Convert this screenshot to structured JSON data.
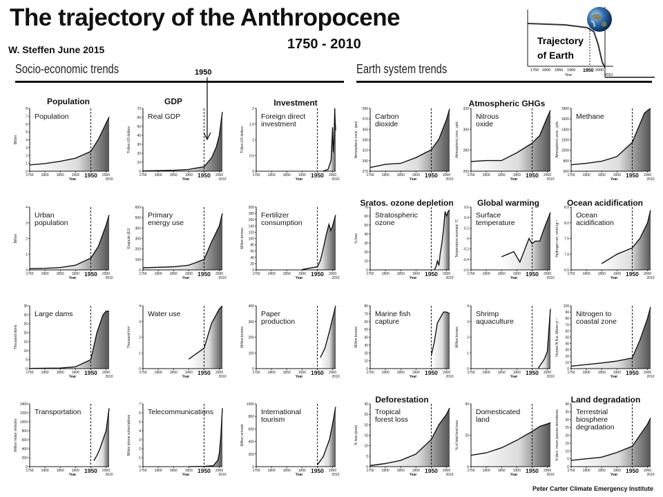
{
  "header": {
    "title": "The trajectory of the Anthropocene",
    "author": "W. Steffen June 2015",
    "period": "1750 - 2010",
    "socio_header": "Socio-economic trends",
    "earth_header": "Earth system trends",
    "marker_1950": "1950",
    "credit": "Peter Carter Climate Emergency Institute"
  },
  "earth_inset": {
    "label_line1": "Trajectory",
    "label_line2": "of Earth",
    "ticks": [
      "1750",
      "1800",
      "1850",
      "1900",
      "1950",
      "2000",
      "2010"
    ],
    "xlabel": "Year",
    "globe_icon": "globe-icon"
  },
  "category_labels": [
    {
      "text": "Population",
      "x": 99,
      "y": 140
    },
    {
      "text": "GDP",
      "x": 251,
      "y": 140
    },
    {
      "text": "Investment",
      "x": 428,
      "y": 142
    },
    {
      "text": "Atmospheric GHGs",
      "x": 734,
      "y": 143
    },
    {
      "text": "Sratos.  ozone depletion",
      "x": 589,
      "y": 287
    },
    {
      "text": "Global warming",
      "x": 736,
      "y": 287
    },
    {
      "text": "Ocean acidification",
      "x": 876,
      "y": 287
    },
    {
      "text": "Deforestation",
      "x": 582,
      "y": 572
    },
    {
      "text": "Land degradation",
      "x": 877,
      "y": 572
    }
  ],
  "chart_data": [
    {
      "type": "area",
      "title": [
        "Population"
      ],
      "ylabel": "Billion",
      "xlabel": "Year",
      "ylim": [
        0,
        8
      ],
      "yticks": [
        "0",
        "1",
        "2",
        "3",
        "4",
        "5",
        "6",
        "7",
        "8"
      ],
      "x": [
        1750,
        1800,
        1850,
        1900,
        1950,
        1975,
        2000,
        2010
      ],
      "y": [
        0.8,
        0.98,
        1.26,
        1.65,
        2.52,
        4.07,
        6.1,
        6.9
      ]
    },
    {
      "type": "area",
      "title": [
        "Real GDP"
      ],
      "ylabel": "Trillion US dollars",
      "xlabel": "Year",
      "ylim": [
        0,
        70
      ],
      "yticks": [
        "0",
        "10",
        "20",
        "30",
        "40",
        "50",
        "60",
        "70"
      ],
      "x": [
        1750,
        1850,
        1900,
        1950,
        1975,
        1990,
        2000,
        2010
      ],
      "y": [
        0.3,
        1,
        2,
        5,
        15,
        27,
        40,
        66
      ]
    },
    {
      "type": "area",
      "title": [
        "Foreign direct",
        "investment"
      ],
      "ylabel": "Trillion US dollars",
      "xlabel": "Year",
      "ylim": [
        0,
        2
      ],
      "yticks": [
        "0",
        "0.5",
        "1",
        "1.5",
        "2"
      ],
      "x": [
        1970,
        1985,
        1990,
        1995,
        2000,
        2002,
        2005,
        2007,
        2008,
        2010
      ],
      "y": [
        0.01,
        0.05,
        0.2,
        0.35,
        1.4,
        0.6,
        1.0,
        2.0,
        1.7,
        1.3
      ]
    },
    {
      "type": "area",
      "title": [
        "Carbon",
        "dioxide"
      ],
      "ylabel": "Atmospheric conc., ppm",
      "xlabel": "Year",
      "ylim": [
        270,
        390
      ],
      "yticks": [
        "270",
        "290",
        "310",
        "330",
        "350",
        "370",
        "390"
      ],
      "x": [
        1750,
        1800,
        1850,
        1900,
        1950,
        1975,
        2000,
        2010
      ],
      "y": [
        277,
        283,
        285,
        296,
        311,
        331,
        369,
        389
      ]
    },
    {
      "type": "area",
      "title": [
        "Nitrous",
        "oxide"
      ],
      "ylabel": "Atmospheric conc., ppb",
      "xlabel": "Year",
      "ylim": [
        260,
        325
      ],
      "yticks": [
        "260",
        "280",
        "300",
        "320"
      ],
      "x": [
        1750,
        1800,
        1850,
        1900,
        1950,
        1975,
        2000,
        2010
      ],
      "y": [
        270,
        271,
        271,
        279,
        289,
        297,
        316,
        323
      ]
    },
    {
      "type": "area",
      "title": [
        "Methane"
      ],
      "ylabel": "Atmospheric conc., ppb",
      "xlabel": "Year",
      "ylim": [
        600,
        1800
      ],
      "yticks": [
        "600",
        "800",
        "1000",
        "1200",
        "1400",
        "1600",
        "1800"
      ],
      "x": [
        1750,
        1800,
        1850,
        1900,
        1950,
        1975,
        1990,
        2000,
        2010
      ],
      "y": [
        722,
        750,
        790,
        880,
        1150,
        1500,
        1710,
        1760,
        1800
      ]
    },
    {
      "type": "area",
      "title": [
        "Urban",
        "population"
      ],
      "ylabel": "Billion",
      "xlabel": "Year",
      "ylim": [
        0,
        4
      ],
      "yticks": [
        "0",
        "1",
        "2",
        "3",
        "4"
      ],
      "x": [
        1750,
        1800,
        1850,
        1900,
        1950,
        1975,
        2000,
        2010
      ],
      "y": [
        0.08,
        0.1,
        0.15,
        0.3,
        0.75,
        1.5,
        2.85,
        3.5
      ]
    },
    {
      "type": "area",
      "title": [
        "Primary",
        "energy use"
      ],
      "ylabel": "Exajoule (EJ)",
      "xlabel": "Year",
      "ylim": [
        0,
        600
      ],
      "yticks": [
        "0",
        "100",
        "200",
        "300",
        "400",
        "500",
        "600"
      ],
      "x": [
        1750,
        1850,
        1900,
        1950,
        1975,
        1990,
        2000,
        2010
      ],
      "y": [
        20,
        30,
        45,
        100,
        270,
        360,
        420,
        540
      ]
    },
    {
      "type": "area",
      "title": [
        "Fertilizer",
        "consumption"
      ],
      "ylabel": "Million tonnes",
      "xlabel": "Year",
      "ylim": [
        0,
        200
      ],
      "yticks": [
        "0",
        "20",
        "40",
        "60",
        "80",
        "100",
        "120",
        "140",
        "160",
        "180",
        "200"
      ],
      "x": [
        1900,
        1950,
        1960,
        1970,
        1980,
        1988,
        1994,
        2000,
        2010
      ],
      "y": [
        1,
        10,
        30,
        70,
        115,
        145,
        125,
        140,
        175
      ]
    },
    {
      "type": "area",
      "title": [
        "Stratospheric",
        "ozone"
      ],
      "ylabel": "% loss",
      "xlabel": "Year",
      "ylim": [
        0,
        70
      ],
      "yticks": [
        "0",
        "10",
        "20",
        "30",
        "40",
        "50",
        "60",
        "70"
      ],
      "x": [
        1960,
        1965,
        1970,
        1975,
        1980,
        1985,
        1990,
        1995,
        2000,
        2005,
        2010
      ],
      "y": [
        0,
        3,
        10,
        5,
        20,
        30,
        45,
        65,
        60,
        65,
        67
      ]
    },
    {
      "type": "area",
      "title": [
        "Surface",
        "temperature"
      ],
      "ylabel": "Temperature anomaly °C",
      "xlabel": "Year",
      "ylim": [
        -0.6,
        0.6
      ],
      "yticks": [
        "-0.6",
        "-0.4",
        "-0.2",
        "0",
        "0.2",
        "0.4",
        "0.6"
      ],
      "x": [
        1850,
        1870,
        1890,
        1910,
        1930,
        1940,
        1950,
        1960,
        1975,
        1990,
        2000,
        2010
      ],
      "y": [
        -0.35,
        -0.3,
        -0.25,
        -0.45,
        -0.15,
        0.0,
        -0.1,
        -0.05,
        -0.05,
        0.2,
        0.35,
        0.5
      ]
    },
    {
      "type": "area",
      "title": [
        "Ocean",
        "acidification"
      ],
      "ylabel": "Hydrogen ion, nmol kg⁻¹",
      "xlabel": "Year",
      "ylim": [
        6.5,
        8.5
      ],
      "yticks": [
        "6.5",
        "7.0",
        "7.5",
        "8.0",
        "8.5"
      ],
      "x": [
        1850,
        1900,
        1950,
        1975,
        2000,
        2010
      ],
      "y": [
        6.7,
        7.0,
        7.2,
        7.5,
        8.0,
        8.4
      ]
    },
    {
      "type": "area",
      "title": [
        "Large dams"
      ],
      "ylabel": "Thousand dams",
      "xlabel": "Year",
      "ylim": [
        0,
        35
      ],
      "yticks": [
        "0",
        "5",
        "10",
        "15",
        "20",
        "25",
        "30",
        "35"
      ],
      "x": [
        1750,
        1850,
        1900,
        1950,
        1970,
        1990,
        2000,
        2010
      ],
      "y": [
        0.1,
        0.3,
        1,
        5,
        20,
        30,
        32,
        32
      ]
    },
    {
      "type": "area",
      "title": [
        "Water use"
      ],
      "ylabel": "Thousand km³",
      "xlabel": "Year",
      "ylim": [
        0,
        4
      ],
      "yticks": [
        "0",
        "1",
        "2",
        "3",
        "4"
      ],
      "x": [
        1900,
        1950,
        1975,
        2000,
        2010
      ],
      "y": [
        0.6,
        1.3,
        2.9,
        3.8,
        4.0
      ]
    },
    {
      "type": "area",
      "title": [
        "Paper",
        "production"
      ],
      "ylabel": "Million tonnes",
      "xlabel": "Year",
      "ylim": [
        0,
        400
      ],
      "yticks": [
        "0",
        "100",
        "200",
        "300",
        "400"
      ],
      "x": [
        1960,
        1975,
        1990,
        2000,
        2010
      ],
      "y": [
        70,
        130,
        240,
        320,
        400
      ]
    },
    {
      "type": "area",
      "title": [
        "Marine fish",
        "capture"
      ],
      "ylabel": "Million tonnes",
      "xlabel": "Year",
      "ylim": [
        0,
        80
      ],
      "yticks": [
        "0",
        "10",
        "20",
        "30",
        "40",
        "50",
        "60",
        "70",
        "80"
      ],
      "x": [
        1950,
        1960,
        1970,
        1980,
        1990,
        2000,
        2010
      ],
      "y": [
        17,
        34,
        58,
        65,
        72,
        72,
        70
      ]
    },
    {
      "type": "area",
      "title": [
        "Shrimp",
        "aquaculture"
      ],
      "ylabel": "Million tonnes",
      "xlabel": "Year",
      "ylim": [
        0,
        4
      ],
      "yticks": [
        "0",
        "1",
        "2",
        "3",
        "4"
      ],
      "x": [
        1970,
        1990,
        2000,
        2005,
        2010
      ],
      "y": [
        0.02,
        0.6,
        1.1,
        2.5,
        3.8
      ]
    },
    {
      "type": "area",
      "title": [
        "Nitrogen to",
        "coastal zone"
      ],
      "ylabel": "Human N flux, Mtons yr⁻¹",
      "xlabel": "Year",
      "ylim": [
        0,
        100
      ],
      "yticks": [
        "0",
        "10",
        "20",
        "30",
        "40",
        "50",
        "60",
        "70",
        "80",
        "90",
        "100"
      ],
      "x": [
        1750,
        1850,
        1900,
        1950,
        1975,
        2000,
        2010
      ],
      "y": [
        4,
        9,
        12,
        17,
        45,
        80,
        98
      ]
    },
    {
      "type": "area",
      "title": [
        "Transportation"
      ],
      "ylabel": "Million motor vehicles",
      "xlabel": "Year",
      "ylim": [
        0,
        1400
      ],
      "yticks": [
        "0",
        "200",
        "400",
        "600",
        "800",
        "1000",
        "1200",
        "1400"
      ],
      "x": [
        1960,
        1970,
        1980,
        1990,
        2000,
        2010
      ],
      "y": [
        130,
        250,
        400,
        600,
        800,
        1300
      ]
    },
    {
      "type": "area",
      "title": [
        "Telecommunications"
      ],
      "ylabel": "Billion phone subscriptions",
      "xlabel": "Year",
      "ylim": [
        0,
        7
      ],
      "yticks": [
        "0",
        "1",
        "2",
        "3",
        "4",
        "5",
        "6",
        "7"
      ],
      "x": [
        1900,
        1950,
        1980,
        1995,
        2000,
        2005,
        2010
      ],
      "y": [
        0.01,
        0.03,
        0.1,
        0.7,
        1.5,
        3.4,
        6.5
      ]
    },
    {
      "type": "area",
      "title": [
        "International",
        "tourism"
      ],
      "ylabel": "Million arrivals",
      "xlabel": "Year",
      "ylim": [
        0,
        1000
      ],
      "yticks": [
        "0",
        "200",
        "400",
        "600",
        "800",
        "1000"
      ],
      "x": [
        1950,
        1970,
        1990,
        2000,
        2010
      ],
      "y": [
        25,
        165,
        435,
        680,
        950
      ]
    },
    {
      "type": "area",
      "title": [
        "Tropical",
        "forest loss"
      ],
      "ylabel": "% loss (area)",
      "xlabel": "Year",
      "ylim": [
        0,
        30
      ],
      "yticks": [
        "0",
        "5",
        "10",
        "15",
        "20",
        "25",
        "30"
      ],
      "x": [
        1750,
        1800,
        1850,
        1900,
        1950,
        1975,
        2000,
        2010
      ],
      "y": [
        0.5,
        1.5,
        3,
        6,
        13,
        20,
        25,
        28
      ]
    },
    {
      "type": "area",
      "title": [
        "Domesticated",
        "land"
      ],
      "ylabel": "% of total land area",
      "xlabel": "Year",
      "ylim": [
        0,
        50
      ],
      "yticks": [
        "0",
        "25",
        "50"
      ],
      "x": [
        1750,
        1800,
        1850,
        1900,
        1950,
        1975,
        2000,
        2010
      ],
      "y": [
        9,
        11,
        15,
        21,
        28,
        32,
        34,
        35
      ]
    },
    {
      "type": "area",
      "title": [
        "Terrestrial",
        "biosphere",
        "degradation"
      ],
      "ylabel": "% decr. mean species abundance",
      "xlabel": "Year",
      "ylim": [
        0,
        40
      ],
      "yticks": [
        "0",
        "5",
        "10",
        "15",
        "20",
        "25",
        "30",
        "35",
        "40"
      ],
      "x": [
        1750,
        1850,
        1900,
        1950,
        1975,
        2000,
        2010
      ],
      "y": [
        4,
        6,
        9,
        13,
        20,
        27,
        31
      ]
    }
  ]
}
